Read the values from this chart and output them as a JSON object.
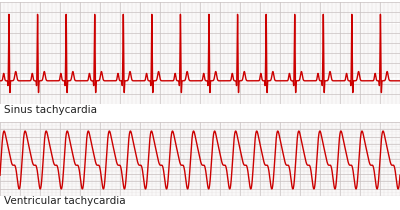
{
  "bg_color": "#f2eeee",
  "grid_major_color": "#c8c0c0",
  "grid_minor_color": "#ddd8d8",
  "ecg_color": "#cc0000",
  "ecg_lw": 1.0,
  "label1": "Sinus tachycardia",
  "label2": "Ventricular tachycardia",
  "label_fontsize": 7.5,
  "label_color": "#222222",
  "white": "#ffffff",
  "border_color": "#bbbbbb",
  "sinus_n_beats": 14,
  "sinus_beat_period": 1.0,
  "vtach_n_beats": 19,
  "vtach_beat_period": 1.0
}
